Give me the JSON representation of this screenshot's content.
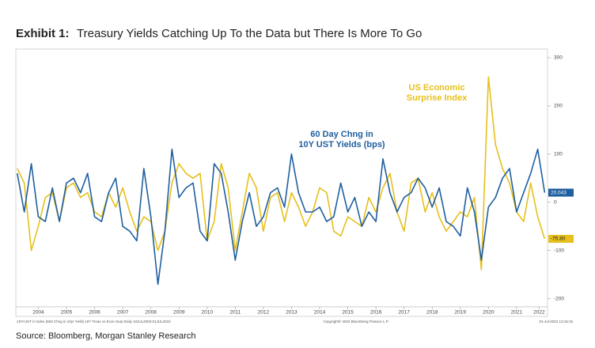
{
  "chart_data": {
    "type": "line",
    "title": "Exhibit 1:",
    "subtitle": "Treasury Yields Catching Up To the Data but There Is More To Go",
    "source": "Source: Bloomberg, Morgan Stanley Research",
    "footer_left": ".10YrUST U Index (60d Chng in 10yr Yield) 10Y Treas vs Econ Surp  Daily 10JUL2003-01JUL2022",
    "footer_center": "Copyright© 2022 Bloomberg Finance L.P.",
    "footer_right": "01-Jul-2022 13:16:15",
    "annotations": [
      {
        "text": "US Economic",
        "series": 1
      },
      {
        "text": "Surprise Index",
        "series": 1
      },
      {
        "text": "60 Day Chng in",
        "series": 0
      },
      {
        "text": "10Y UST Yields (bps)",
        "series": 0
      }
    ],
    "x": [
      2003.75,
      2004,
      2004.25,
      2004.5,
      2004.75,
      2005,
      2005.25,
      2005.5,
      2005.75,
      2006,
      2006.25,
      2006.5,
      2006.75,
      2007,
      2007.25,
      2007.5,
      2007.75,
      2008,
      2008.25,
      2008.5,
      2008.75,
      2009,
      2009.25,
      2009.5,
      2009.75,
      2010,
      2010.25,
      2010.5,
      2010.75,
      2011,
      2011.25,
      2011.5,
      2011.75,
      2012,
      2012.25,
      2012.5,
      2012.75,
      2013,
      2013.25,
      2013.5,
      2013.75,
      2014,
      2014.25,
      2014.5,
      2014.75,
      2015,
      2015.25,
      2015.5,
      2015.75,
      2016,
      2016.25,
      2016.5,
      2016.75,
      2017,
      2017.25,
      2017.5,
      2017.75,
      2018,
      2018.25,
      2018.5,
      2018.75,
      2019,
      2019.25,
      2019.5,
      2019.75,
      2020,
      2020.25,
      2020.5,
      2020.75,
      2021,
      2021.25,
      2021.5,
      2021.75,
      2022,
      2022.25,
      2022.5
    ],
    "series": [
      {
        "name": "60 Day Chng in 10Y UST Yields (bps)",
        "color": "#1f5fa0",
        "end_label": "20.043",
        "values": [
          60,
          -20,
          80,
          -30,
          -40,
          30,
          -40,
          40,
          50,
          20,
          60,
          -30,
          -40,
          20,
          50,
          -50,
          -60,
          -80,
          70,
          -30,
          -170,
          -60,
          110,
          10,
          30,
          40,
          -60,
          -80,
          80,
          60,
          -20,
          -120,
          -40,
          20,
          -50,
          -30,
          20,
          30,
          -10,
          100,
          20,
          -20,
          -20,
          -10,
          -40,
          -30,
          40,
          -20,
          10,
          -50,
          -20,
          -40,
          90,
          20,
          -20,
          10,
          20,
          50,
          30,
          -10,
          30,
          -40,
          -50,
          -70,
          30,
          -20,
          -120,
          -10,
          10,
          50,
          70,
          -20,
          20,
          60,
          110,
          20.043
        ]
      },
      {
        "name": "US Economic Surprise Index",
        "color": "#e6c01c",
        "end_label": "-75.80",
        "values": [
          70,
          40,
          -100,
          -50,
          10,
          20,
          -40,
          30,
          40,
          10,
          20,
          -20,
          -30,
          20,
          -10,
          30,
          -20,
          -60,
          -30,
          -40,
          -100,
          -60,
          40,
          80,
          60,
          50,
          60,
          -80,
          -40,
          80,
          30,
          -100,
          -20,
          60,
          30,
          -60,
          10,
          20,
          -40,
          20,
          -10,
          -50,
          -20,
          30,
          20,
          -60,
          -70,
          -30,
          -40,
          -50,
          10,
          -20,
          30,
          60,
          -20,
          -60,
          40,
          50,
          -20,
          20,
          -30,
          -60,
          -40,
          -20,
          -30,
          10,
          -140,
          260,
          120,
          70,
          40,
          -20,
          -40,
          40,
          -30,
          -75.8
        ]
      }
    ],
    "xlim": [
      2003.7,
      2022.6
    ],
    "xticks": [
      {
        "value": 2004.5,
        "label": "2004"
      },
      {
        "value": 2005.5,
        "label": "2005"
      },
      {
        "value": 2006.5,
        "label": "2006"
      },
      {
        "value": 2007.5,
        "label": "2007"
      },
      {
        "value": 2008.5,
        "label": "2008"
      },
      {
        "value": 2009.5,
        "label": "2009"
      },
      {
        "value": 2010.5,
        "label": "2010"
      },
      {
        "value": 2011.5,
        "label": "2011"
      },
      {
        "value": 2012.5,
        "label": "2012"
      },
      {
        "value": 2013.5,
        "label": "2013"
      },
      {
        "value": 2014.5,
        "label": "2014"
      },
      {
        "value": 2015.5,
        "label": "2015"
      },
      {
        "value": 2016.5,
        "label": "2016"
      },
      {
        "value": 2017.5,
        "label": "2017"
      },
      {
        "value": 2018.5,
        "label": "2018"
      },
      {
        "value": 2019.5,
        "label": "2019"
      },
      {
        "value": 2020.5,
        "label": "2020"
      },
      {
        "value": 2021.5,
        "label": "2021"
      },
      {
        "value": 2022.3,
        "label": "2022"
      }
    ],
    "ylim": [
      -217,
      318
    ],
    "yticks": [
      300,
      200,
      100,
      0,
      -100,
      -200
    ],
    "y_axis_side": "right"
  }
}
